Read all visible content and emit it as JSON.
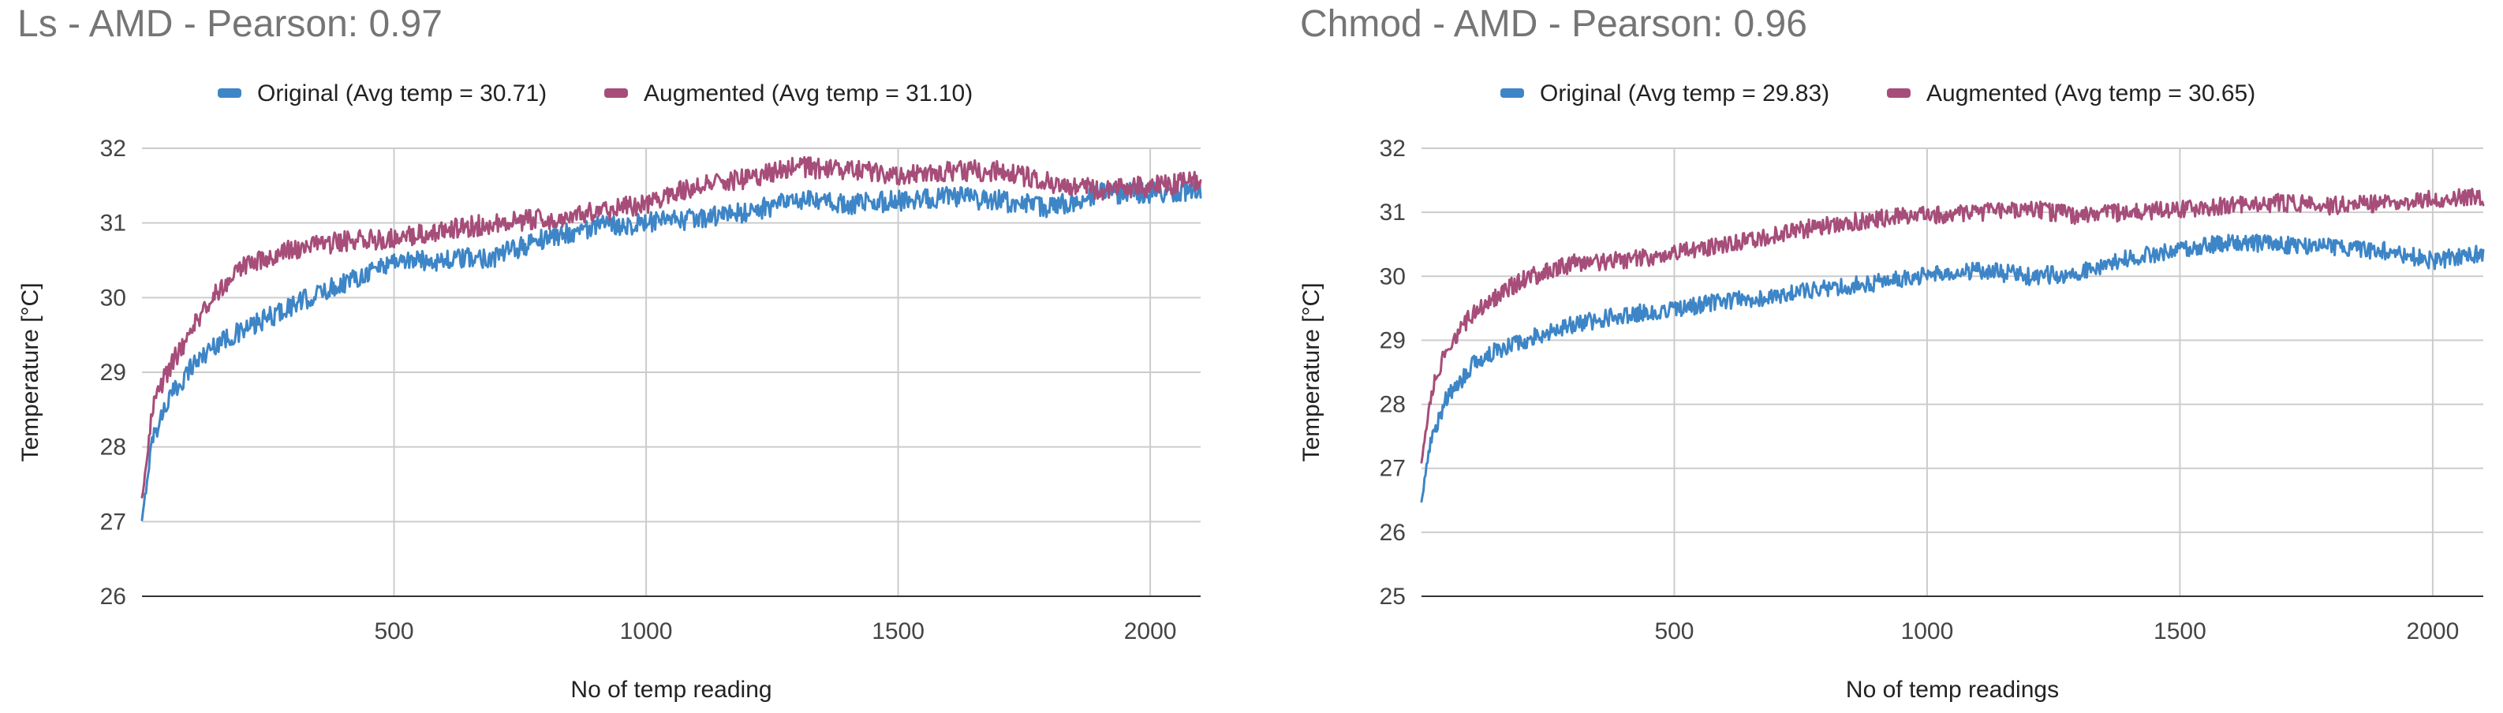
{
  "chart_data": [
    {
      "type": "line",
      "title": "Ls - AMD - Pearson: 0.97",
      "xlabel": "No of temp reading",
      "ylabel": "Temperature [°C]",
      "xlim": [
        0,
        2100
      ],
      "ylim": [
        26,
        32
      ],
      "xticks": [
        500,
        1000,
        1500,
        2000
      ],
      "yticks": [
        26,
        27,
        28,
        29,
        30,
        31,
        32
      ],
      "legend_position": "top",
      "grid": true,
      "series": [
        {
          "name": "Original (Avg temp = 30.71)",
          "color": "#3d85c6",
          "noise_amplitude": 0.14,
          "points": [
            [
              0,
              27.0
            ],
            [
              20,
              28.1
            ],
            [
              50,
              28.6
            ],
            [
              100,
              29.1
            ],
            [
              150,
              29.4
            ],
            [
              200,
              29.55
            ],
            [
              300,
              29.9
            ],
            [
              400,
              30.2
            ],
            [
              500,
              30.5
            ],
            [
              600,
              30.5
            ],
            [
              700,
              30.55
            ],
            [
              800,
              30.8
            ],
            [
              900,
              30.95
            ],
            [
              1000,
              31.0
            ],
            [
              1100,
              31.05
            ],
            [
              1200,
              31.15
            ],
            [
              1300,
              31.3
            ],
            [
              1400,
              31.25
            ],
            [
              1500,
              31.3
            ],
            [
              1600,
              31.35
            ],
            [
              1700,
              31.3
            ],
            [
              1800,
              31.2
            ],
            [
              1900,
              31.4
            ],
            [
              2000,
              31.4
            ],
            [
              2100,
              31.45
            ]
          ]
        },
        {
          "name": "Augmented (Avg temp = 31.10)",
          "color": "#a64d79",
          "noise_amplitude": 0.14,
          "points": [
            [
              0,
              27.3
            ],
            [
              20,
              28.5
            ],
            [
              50,
              29.0
            ],
            [
              100,
              29.6
            ],
            [
              150,
              30.1
            ],
            [
              200,
              30.4
            ],
            [
              300,
              30.65
            ],
            [
              400,
              30.75
            ],
            [
              500,
              30.8
            ],
            [
              600,
              30.9
            ],
            [
              700,
              31.0
            ],
            [
              800,
              31.05
            ],
            [
              900,
              31.15
            ],
            [
              1000,
              31.25
            ],
            [
              1100,
              31.5
            ],
            [
              1200,
              31.6
            ],
            [
              1300,
              31.75
            ],
            [
              1400,
              31.7
            ],
            [
              1500,
              31.65
            ],
            [
              1600,
              31.7
            ],
            [
              1700,
              31.7
            ],
            [
              1800,
              31.55
            ],
            [
              1900,
              31.45
            ],
            [
              2000,
              31.5
            ],
            [
              2100,
              31.55
            ]
          ]
        }
      ]
    },
    {
      "type": "line",
      "title": "Chmod - AMD - Pearson: 0.96",
      "xlabel": "No of temp readings",
      "ylabel": "Temperature [°C]",
      "xlim": [
        0,
        2100
      ],
      "ylim": [
        25,
        32
      ],
      "xticks": [
        500,
        1000,
        1500,
        2000
      ],
      "yticks": [
        25,
        26,
        27,
        28,
        29,
        30,
        31,
        32
      ],
      "legend_position": "top",
      "grid": true,
      "series": [
        {
          "name": "Original (Avg temp = 29.83)",
          "color": "#3d85c6",
          "noise_amplitude": 0.14,
          "points": [
            [
              0,
              26.5
            ],
            [
              20,
              27.5
            ],
            [
              50,
              28.1
            ],
            [
              100,
              28.6
            ],
            [
              150,
              28.85
            ],
            [
              200,
              29.0
            ],
            [
              300,
              29.25
            ],
            [
              400,
              29.4
            ],
            [
              500,
              29.5
            ],
            [
              600,
              29.6
            ],
            [
              700,
              29.7
            ],
            [
              800,
              29.8
            ],
            [
              900,
              29.9
            ],
            [
              1000,
              30.0
            ],
            [
              1100,
              30.1
            ],
            [
              1200,
              30.0
            ],
            [
              1300,
              30.05
            ],
            [
              1400,
              30.3
            ],
            [
              1500,
              30.4
            ],
            [
              1600,
              30.55
            ],
            [
              1700,
              30.5
            ],
            [
              1800,
              30.45
            ],
            [
              1900,
              30.4
            ],
            [
              2000,
              30.25
            ],
            [
              2100,
              30.35
            ]
          ]
        },
        {
          "name": "Augmented (Avg temp = 30.65)",
          "color": "#a64d79",
          "noise_amplitude": 0.14,
          "points": [
            [
              0,
              27.1
            ],
            [
              20,
              28.2
            ],
            [
              50,
              28.9
            ],
            [
              100,
              29.4
            ],
            [
              150,
              29.7
            ],
            [
              200,
              29.95
            ],
            [
              300,
              30.2
            ],
            [
              400,
              30.25
            ],
            [
              500,
              30.35
            ],
            [
              600,
              30.5
            ],
            [
              700,
              30.65
            ],
            [
              800,
              30.8
            ],
            [
              900,
              30.9
            ],
            [
              1000,
              30.95
            ],
            [
              1100,
              31.0
            ],
            [
              1200,
              31.05
            ],
            [
              1300,
              30.95
            ],
            [
              1400,
              31.0
            ],
            [
              1500,
              31.05
            ],
            [
              1600,
              31.1
            ],
            [
              1700,
              31.15
            ],
            [
              1800,
              31.1
            ],
            [
              1900,
              31.15
            ],
            [
              2000,
              31.2
            ],
            [
              2100,
              31.25
            ]
          ]
        }
      ]
    }
  ]
}
